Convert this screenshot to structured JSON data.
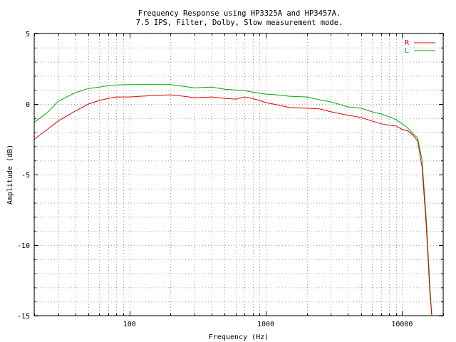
{
  "chart_data": {
    "type": "line",
    "title": "Frequency Response using HP3325A and HP3457A.",
    "subtitle": "7.5 IPS, Filter, Dolby, Slow measurement mode.",
    "xlabel": "Frequency (Hz)",
    "ylabel": "Amplitude (dB)",
    "xscale": "log",
    "xlim": [
      20,
      20000
    ],
    "ylim": [
      -15,
      5
    ],
    "x_ticks": [
      100,
      1000,
      10000
    ],
    "x_tick_labels": [
      "100",
      "1000",
      "10000"
    ],
    "y_ticks": [
      5,
      0,
      -5,
      -10,
      -15
    ],
    "y_tick_labels": [
      "5",
      "0",
      "-5",
      "-10",
      "-15"
    ],
    "grid": true,
    "legend_position": "top-right",
    "series": [
      {
        "name": "R",
        "color": "#dd0000",
        "points": [
          [
            20,
            -2.5
          ],
          [
            25,
            -1.8
          ],
          [
            30,
            -1.2
          ],
          [
            40,
            -0.5
          ],
          [
            50,
            0.0
          ],
          [
            60,
            0.25
          ],
          [
            70,
            0.4
          ],
          [
            80,
            0.5
          ],
          [
            100,
            0.5
          ],
          [
            120,
            0.55
          ],
          [
            150,
            0.6
          ],
          [
            200,
            0.65
          ],
          [
            250,
            0.55
          ],
          [
            300,
            0.45
          ],
          [
            400,
            0.5
          ],
          [
            500,
            0.4
          ],
          [
            600,
            0.35
          ],
          [
            700,
            0.5
          ],
          [
            800,
            0.4
          ],
          [
            1000,
            0.1
          ],
          [
            1200,
            -0.05
          ],
          [
            1500,
            -0.25
          ],
          [
            2000,
            -0.3
          ],
          [
            2500,
            -0.35
          ],
          [
            3000,
            -0.55
          ],
          [
            4000,
            -0.8
          ],
          [
            5000,
            -0.95
          ],
          [
            6000,
            -1.2
          ],
          [
            7000,
            -1.4
          ],
          [
            8000,
            -1.5
          ],
          [
            9000,
            -1.55
          ],
          [
            10000,
            -1.8
          ],
          [
            11000,
            -1.9
          ],
          [
            12000,
            -2.2
          ],
          [
            13000,
            -2.6
          ],
          [
            14000,
            -4.5
          ],
          [
            15000,
            -8.5
          ],
          [
            16000,
            -13.5
          ],
          [
            16500,
            -15.0
          ]
        ]
      },
      {
        "name": "L",
        "color": "#00aa00",
        "points": [
          [
            20,
            -1.3
          ],
          [
            25,
            -0.6
          ],
          [
            30,
            0.2
          ],
          [
            40,
            0.8
          ],
          [
            50,
            1.1
          ],
          [
            60,
            1.2
          ],
          [
            70,
            1.3
          ],
          [
            80,
            1.35
          ],
          [
            100,
            1.38
          ],
          [
            120,
            1.38
          ],
          [
            150,
            1.38
          ],
          [
            200,
            1.38
          ],
          [
            250,
            1.25
          ],
          [
            300,
            1.15
          ],
          [
            400,
            1.2
          ],
          [
            500,
            1.05
          ],
          [
            600,
            1.0
          ],
          [
            700,
            0.95
          ],
          [
            800,
            0.85
          ],
          [
            1000,
            0.7
          ],
          [
            1200,
            0.65
          ],
          [
            1500,
            0.55
          ],
          [
            2000,
            0.5
          ],
          [
            2500,
            0.3
          ],
          [
            3000,
            0.15
          ],
          [
            4000,
            -0.2
          ],
          [
            5000,
            -0.3
          ],
          [
            6000,
            -0.55
          ],
          [
            7000,
            -0.7
          ],
          [
            8000,
            -0.9
          ],
          [
            9000,
            -1.1
          ],
          [
            10000,
            -1.4
          ],
          [
            11000,
            -1.7
          ],
          [
            12000,
            -2.1
          ],
          [
            13000,
            -2.4
          ],
          [
            14000,
            -4.0
          ],
          [
            15000,
            -8.0
          ],
          [
            16000,
            -13.0
          ],
          [
            16500,
            -15.0
          ]
        ]
      }
    ]
  }
}
